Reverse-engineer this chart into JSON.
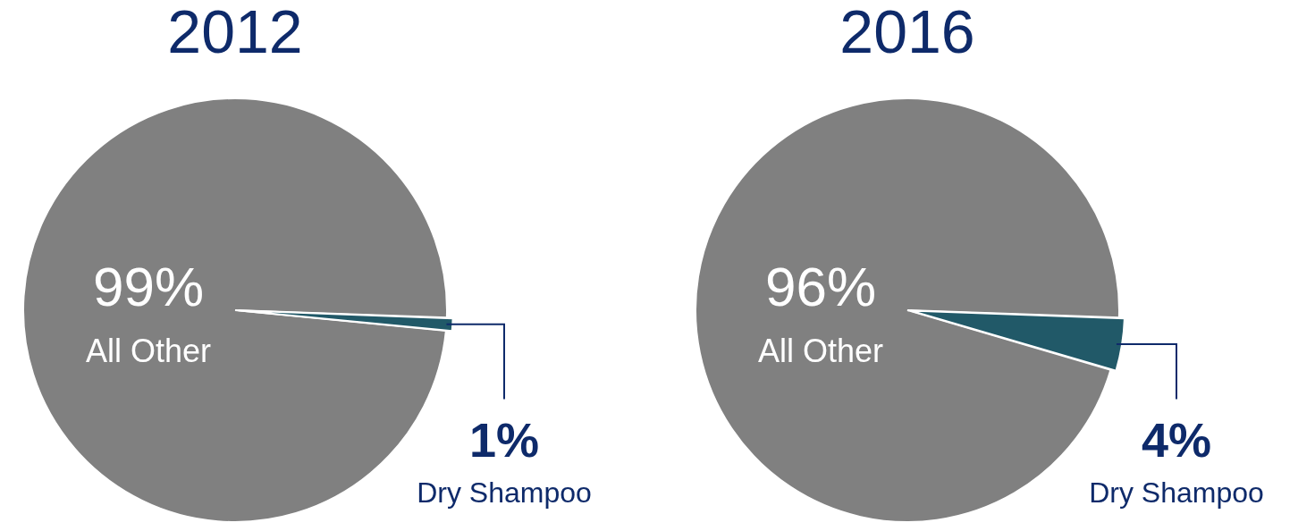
{
  "chart_data": [
    {
      "type": "pie",
      "title": "2012",
      "categories": [
        "All Other",
        "Dry Shampoo"
      ],
      "values": [
        99,
        1
      ],
      "value_labels": [
        "99%",
        "1%"
      ],
      "colors": [
        "#808080",
        "#215968"
      ],
      "legend": false
    },
    {
      "type": "pie",
      "title": "2016",
      "categories": [
        "All Other",
        "Dry Shampoo"
      ],
      "values": [
        96,
        4
      ],
      "value_labels": [
        "96%",
        "4%"
      ],
      "colors": [
        "#808080",
        "#215968"
      ],
      "legend": false
    }
  ]
}
